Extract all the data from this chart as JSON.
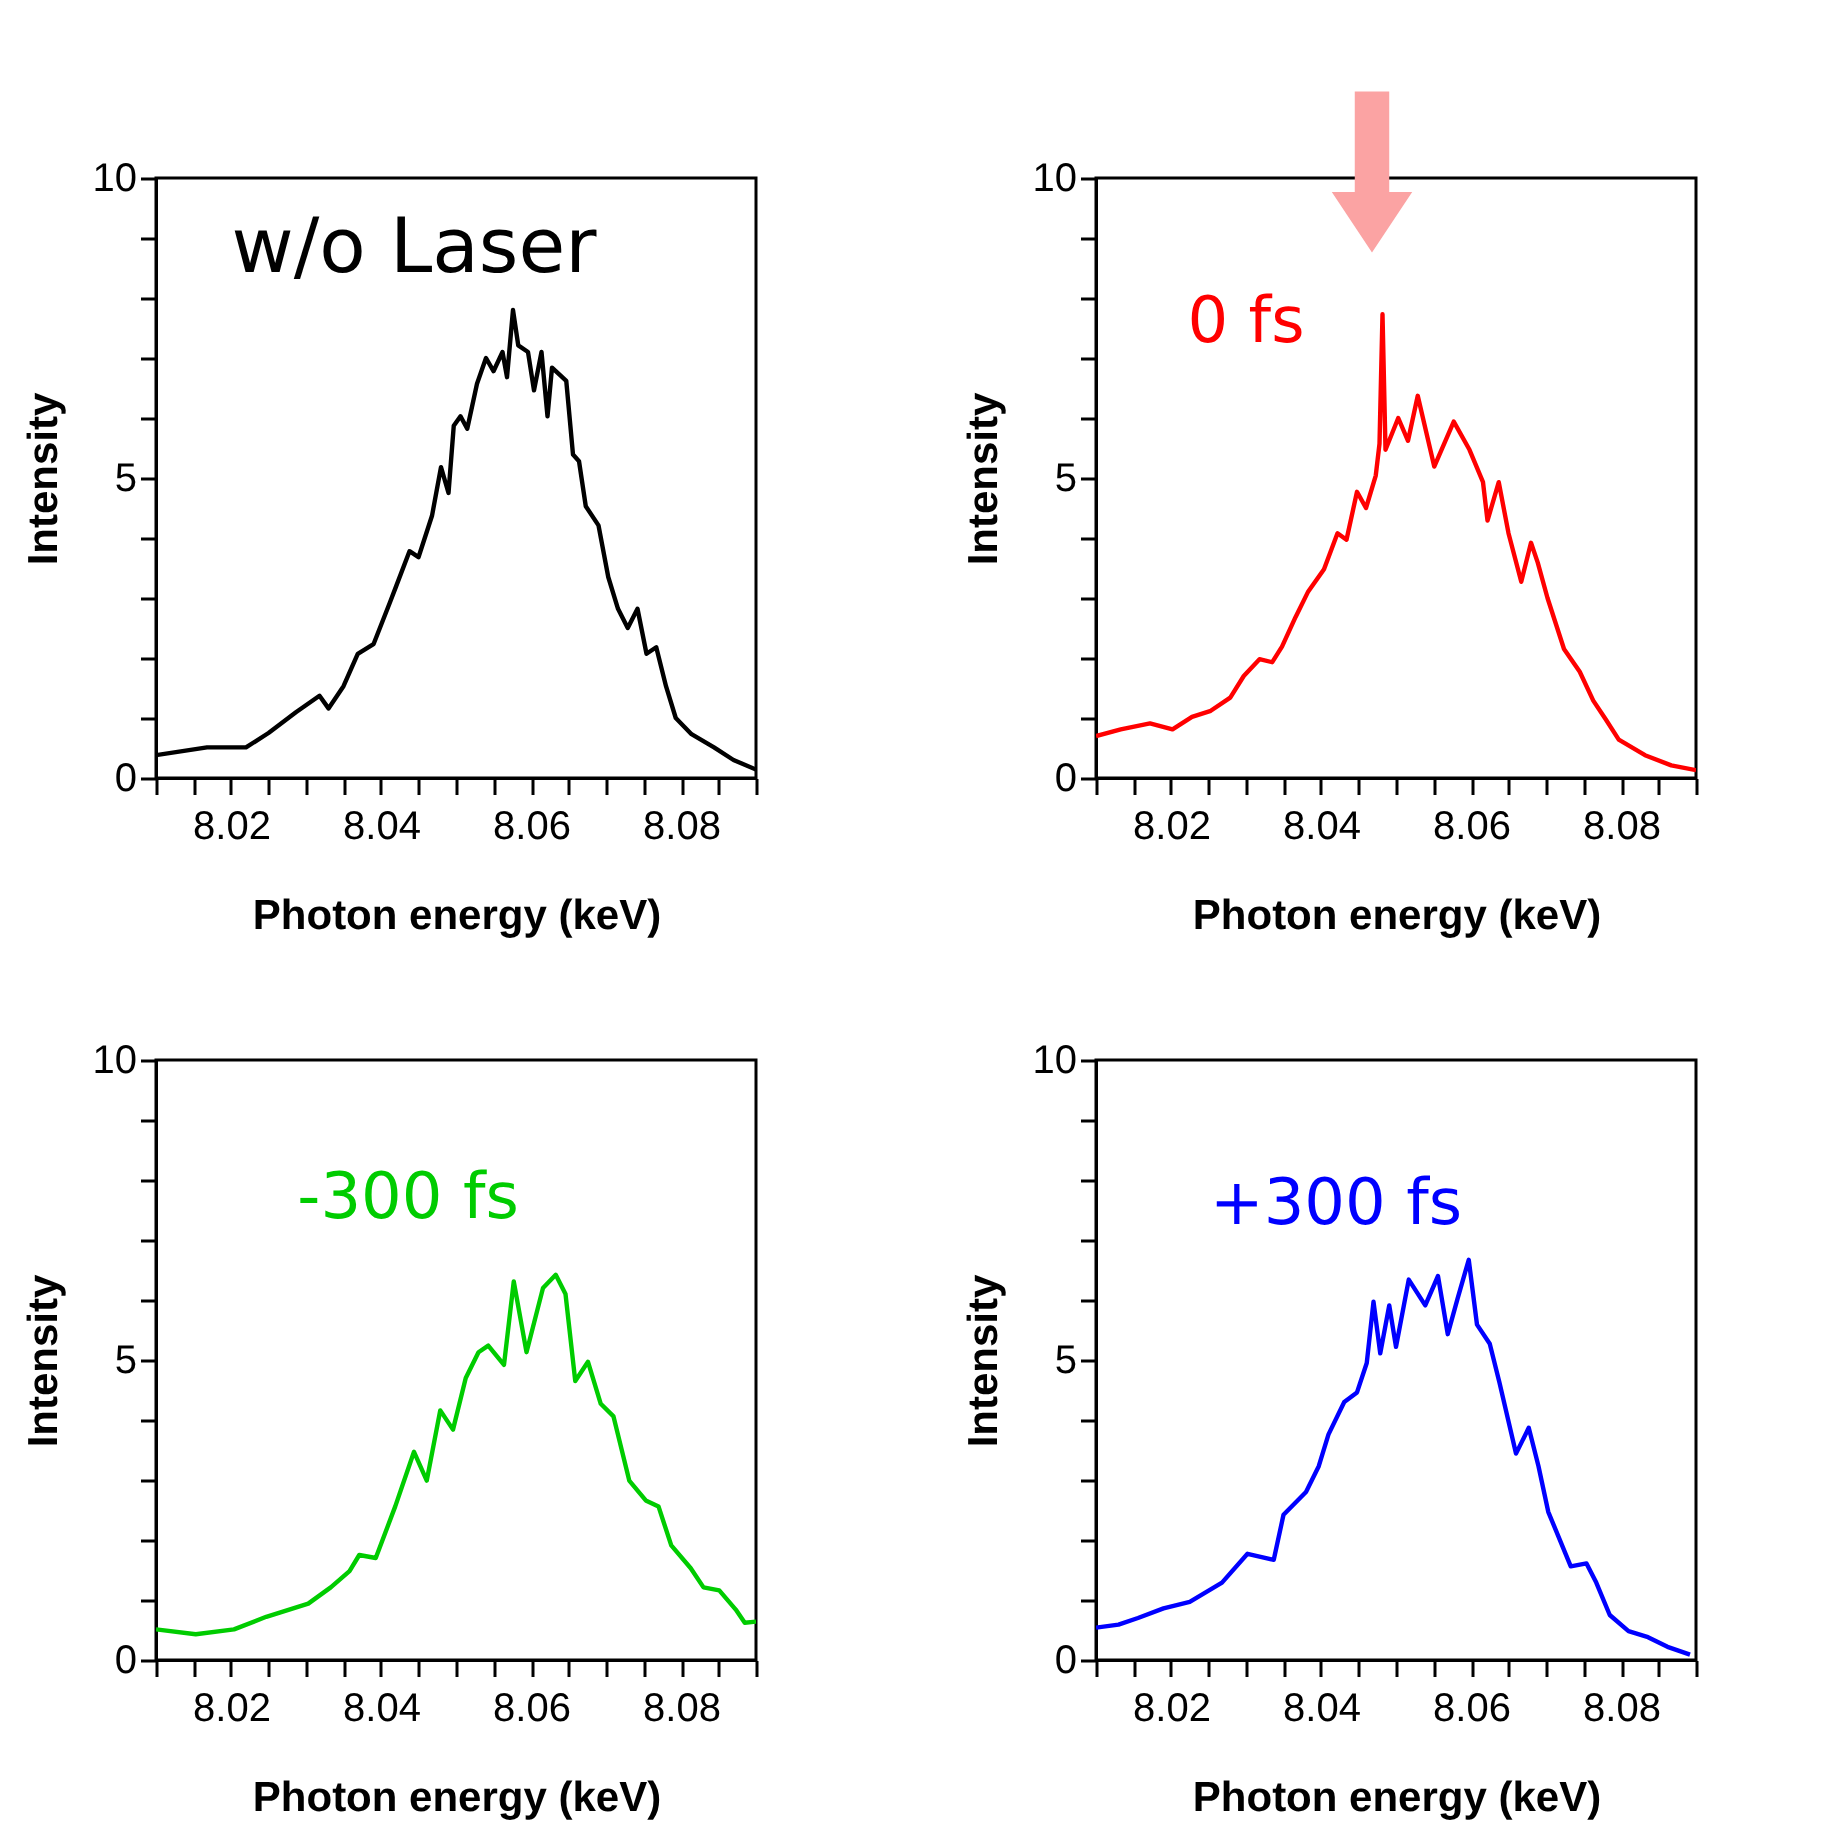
{
  "chart_data": [
    {
      "type": "line",
      "xlabel": "Photon energy (keV)",
      "ylabel": "Intensity",
      "xlim": [
        8.01,
        8.09
      ],
      "ylim": [
        0,
        10
      ],
      "xticks": [
        {
          "value": 8.01,
          "label": null
        },
        {
          "value": 8.015,
          "label": null
        },
        8.02,
        {
          "value": 8.025,
          "label": null
        },
        {
          "value": 8.03,
          "label": null
        },
        {
          "value": 8.035,
          "label": null
        },
        8.04,
        {
          "value": 8.045,
          "label": null
        },
        {
          "value": 8.05,
          "label": null
        },
        {
          "value": 8.055,
          "label": null
        },
        8.06,
        {
          "value": 8.065,
          "label": null
        },
        {
          "value": 8.07,
          "label": null
        },
        {
          "value": 8.075,
          "label": null
        },
        8.08,
        {
          "value": 8.085,
          "label": null
        },
        {
          "value": 8.09,
          "label": null
        }
      ],
      "yticks": [
        0,
        {
          "value": 1,
          "label": null
        },
        {
          "value": 2,
          "label": null
        },
        {
          "value": 3,
          "label": null
        },
        {
          "value": 4,
          "label": null
        },
        5,
        {
          "value": 6,
          "label": null
        },
        {
          "value": 7,
          "label": null
        },
        {
          "value": 8,
          "label": null
        },
        {
          "value": 9,
          "label": null
        },
        10
      ],
      "series": [
        {
          "name": "w/o Laser",
          "color": "#000000",
          "x": [
            8.01,
            8.0168,
            8.022,
            8.025,
            8.0287,
            8.0318,
            8.033,
            8.035,
            8.0369,
            8.039,
            8.0412,
            8.042,
            8.0438,
            8.045,
            8.0468,
            8.048,
            8.049,
            8.0497,
            8.0506,
            8.0515,
            8.0528,
            8.054,
            8.055,
            8.0562,
            8.0568,
            8.0576,
            8.0583,
            8.0596,
            8.0604,
            8.0614,
            8.0622,
            8.0628,
            8.0647,
            8.0656,
            8.0664,
            8.0673,
            8.069,
            8.0703,
            8.0716,
            8.0729,
            8.0742,
            8.0754,
            8.0767,
            8.078,
            8.0793,
            8.0814,
            8.0844,
            8.087,
            8.09
          ],
          "values": [
            0.38,
            0.51,
            0.51,
            0.75,
            1.1,
            1.37,
            1.16,
            1.53,
            2.07,
            2.23,
            2.93,
            3.19,
            3.78,
            3.68,
            4.37,
            5.18,
            4.75,
            5.87,
            6.03,
            5.82,
            6.57,
            7.0,
            6.78,
            7.1,
            6.68,
            7.8,
            7.21,
            7.1,
            6.46,
            7.1,
            6.03,
            6.84,
            6.62,
            5.39,
            5.28,
            4.53,
            4.21,
            3.35,
            2.82,
            2.5,
            2.82,
            2.07,
            2.18,
            1.53,
            1.0,
            0.73,
            0.51,
            0.3,
            0.14
          ]
        }
      ]
    },
    {
      "type": "line",
      "xlabel": "Photon energy (keV)",
      "ylabel": "Intensity",
      "xlim": [
        8.01,
        8.09
      ],
      "ylim": [
        0,
        10
      ],
      "xticks": [
        {
          "value": 8.01,
          "label": null
        },
        {
          "value": 8.015,
          "label": null
        },
        8.02,
        {
          "value": 8.025,
          "label": null
        },
        {
          "value": 8.03,
          "label": null
        },
        {
          "value": 8.035,
          "label": null
        },
        8.04,
        {
          "value": 8.045,
          "label": null
        },
        {
          "value": 8.05,
          "label": null
        },
        {
          "value": 8.055,
          "label": null
        },
        8.06,
        {
          "value": 8.065,
          "label": null
        },
        {
          "value": 8.07,
          "label": null
        },
        {
          "value": 8.075,
          "label": null
        },
        8.08,
        {
          "value": 8.085,
          "label": null
        },
        {
          "value": 8.09,
          "label": null
        }
      ],
      "yticks": [
        0,
        {
          "value": 1,
          "label": null
        },
        {
          "value": 2,
          "label": null
        },
        {
          "value": 3,
          "label": null
        },
        {
          "value": 4,
          "label": null
        },
        5,
        {
          "value": 6,
          "label": null
        },
        {
          "value": 7,
          "label": null
        },
        {
          "value": 8,
          "label": null
        },
        {
          "value": 9,
          "label": null
        },
        10
      ],
      "series": [
        {
          "name": "0 fs",
          "color": "#ff0000",
          "x": [
            8.01,
            8.0133,
            8.0172,
            8.0202,
            8.0228,
            8.0253,
            8.0279,
            8.0297,
            8.0318,
            8.0335,
            8.0348,
            8.0366,
            8.0383,
            8.0404,
            8.0422,
            8.0434,
            8.0448,
            8.046,
            8.0473,
            8.0478,
            8.0482,
            8.0486,
            8.0503,
            8.0516,
            8.0529,
            8.0551,
            8.0577,
            8.0598,
            8.0616,
            8.0622,
            8.0637,
            8.065,
            8.0667,
            8.068,
            8.0689,
            8.0702,
            8.0724,
            8.0745,
            8.0763,
            8.078,
            8.0797,
            8.0832,
            8.0867,
            8.09
          ],
          "values": [
            0.7,
            0.81,
            0.91,
            0.81,
            1.02,
            1.12,
            1.34,
            1.7,
            1.98,
            1.93,
            2.19,
            2.68,
            3.11,
            3.48,
            4.08,
            3.97,
            4.77,
            4.5,
            5.04,
            5.57,
            7.73,
            5.47,
            6.0,
            5.62,
            6.37,
            5.19,
            5.94,
            5.47,
            4.93,
            4.29,
            4.93,
            4.08,
            3.27,
            3.92,
            3.59,
            3.0,
            2.15,
            1.77,
            1.29,
            0.97,
            0.64,
            0.38,
            0.21,
            0.13
          ]
        }
      ]
    },
    {
      "type": "line",
      "xlabel": "Photon energy (keV)",
      "ylabel": "Intensity",
      "xlim": [
        8.01,
        8.09
      ],
      "ylim": [
        0,
        10
      ],
      "xticks": [
        {
          "value": 8.01,
          "label": null
        },
        {
          "value": 8.015,
          "label": null
        },
        8.02,
        {
          "value": 8.025,
          "label": null
        },
        {
          "value": 8.03,
          "label": null
        },
        {
          "value": 8.035,
          "label": null
        },
        8.04,
        {
          "value": 8.045,
          "label": null
        },
        {
          "value": 8.05,
          "label": null
        },
        {
          "value": 8.055,
          "label": null
        },
        8.06,
        {
          "value": 8.065,
          "label": null
        },
        {
          "value": 8.07,
          "label": null
        },
        {
          "value": 8.075,
          "label": null
        },
        8.08,
        {
          "value": 8.085,
          "label": null
        },
        {
          "value": 8.09,
          "label": null
        }
      ],
      "yticks": [
        0,
        {
          "value": 1,
          "label": null
        },
        {
          "value": 2,
          "label": null
        },
        {
          "value": 3,
          "label": null
        },
        {
          "value": 4,
          "label": null
        },
        5,
        {
          "value": 6,
          "label": null
        },
        {
          "value": 7,
          "label": null
        },
        {
          "value": 8,
          "label": null
        },
        {
          "value": 9,
          "label": null
        },
        10
      ],
      "series": [
        {
          "name": "-300 fs",
          "color": "#00cc00",
          "x": [
            8.01,
            8.0153,
            8.0204,
            8.0247,
            8.0303,
            8.0333,
            8.0358,
            8.0371,
            8.0393,
            8.0419,
            8.0444,
            8.0461,
            8.0479,
            8.0496,
            8.0513,
            8.053,
            8.0543,
            8.0564,
            8.0577,
            8.0594,
            8.0616,
            8.0633,
            8.0646,
            8.0659,
            8.0676,
            8.0693,
            8.071,
            8.0731,
            8.0753,
            8.077,
            8.0787,
            8.0813,
            8.083,
            8.0851,
            8.0873,
            8.0885,
            8.09
          ],
          "values": [
            0.51,
            0.43,
            0.51,
            0.72,
            0.94,
            1.21,
            1.48,
            1.75,
            1.7,
            2.56,
            3.47,
            2.99,
            4.16,
            3.84,
            4.7,
            5.13,
            5.24,
            4.92,
            6.31,
            5.13,
            6.2,
            6.42,
            6.1,
            4.65,
            4.97,
            4.27,
            4.06,
            2.99,
            2.66,
            2.56,
            1.91,
            1.53,
            1.21,
            1.16,
            0.84,
            0.62,
            0.64
          ]
        }
      ]
    },
    {
      "type": "line",
      "xlabel": "Photon energy (keV)",
      "ylabel": "Intensity",
      "xlim": [
        8.01,
        8.09
      ],
      "ylim": [
        0,
        10
      ],
      "xticks": [
        {
          "value": 8.01,
          "label": null
        },
        {
          "value": 8.015,
          "label": null
        },
        8.02,
        {
          "value": 8.025,
          "label": null
        },
        {
          "value": 8.03,
          "label": null
        },
        {
          "value": 8.035,
          "label": null
        },
        8.04,
        {
          "value": 8.045,
          "label": null
        },
        {
          "value": 8.05,
          "label": null
        },
        {
          "value": 8.055,
          "label": null
        },
        8.06,
        {
          "value": 8.065,
          "label": null
        },
        {
          "value": 8.07,
          "label": null
        },
        {
          "value": 8.075,
          "label": null
        },
        8.08,
        {
          "value": 8.085,
          "label": null
        },
        {
          "value": 8.09,
          "label": null
        }
      ],
      "yticks": [
        0,
        {
          "value": 1,
          "label": null
        },
        {
          "value": 2,
          "label": null
        },
        {
          "value": 3,
          "label": null
        },
        {
          "value": 4,
          "label": null
        },
        5,
        {
          "value": 6,
          "label": null
        },
        {
          "value": 7,
          "label": null
        },
        {
          "value": 8,
          "label": null
        },
        {
          "value": 9,
          "label": null
        },
        10
      ],
      "series": [
        {
          "name": "+300 fs",
          "color": "#0000ff",
          "x": [
            8.01,
            8.013,
            8.0156,
            8.019,
            8.0225,
            8.0268,
            8.0302,
            8.0337,
            8.035,
            8.038,
            8.0397,
            8.041,
            8.0431,
            8.0448,
            8.0461,
            8.047,
            8.0479,
            8.0491,
            8.05,
            8.0517,
            8.0539,
            8.0556,
            8.0569,
            8.0582,
            8.0597,
            8.0608,
            8.0625,
            8.0638,
            8.066,
            8.0677,
            8.069,
            8.0703,
            8.0733,
            8.0754,
            8.0767,
            8.0785,
            8.081,
            8.0836,
            8.0862,
            8.0892
          ],
          "values": [
            0.54,
            0.59,
            0.7,
            0.86,
            0.97,
            1.29,
            1.77,
            1.67,
            2.42,
            2.8,
            3.23,
            3.76,
            4.3,
            4.46,
            4.95,
            5.97,
            5.11,
            5.91,
            5.22,
            6.34,
            5.91,
            6.4,
            5.43,
            6.02,
            6.67,
            5.59,
            5.27,
            4.62,
            3.44,
            3.87,
            3.23,
            2.47,
            1.56,
            1.61,
            1.29,
            0.75,
            0.48,
            0.38,
            0.22,
            0.09
          ]
        }
      ]
    }
  ]
}
